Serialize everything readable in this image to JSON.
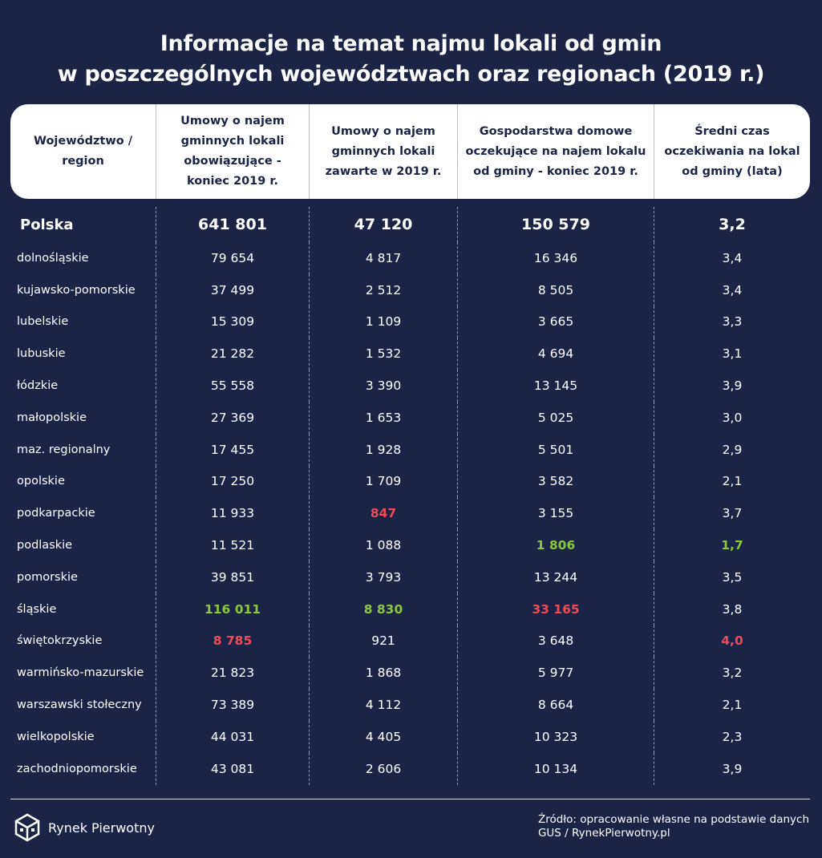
{
  "title": {
    "line1": "Informacje na temat najmu lokali od gmin",
    "line2": "w poszczególnych województwach oraz regionach (2019 r.)"
  },
  "header": {
    "col0": "Województwo / region",
    "col1": "Umowy o najem gminnych lokali obowiązujące - koniec 2019 r.",
    "col2": "Umowy o najem gminnych lokali zawarte w 2019 r.",
    "col3": "Gospodarstwa domowe oczekujące na najem lokalu od gminy - koniec 2019 r.",
    "col4": "Średni czas oczekiwania na lokal od gminy (lata)"
  },
  "colors": {
    "highlight_max": "#8cc63f",
    "highlight_min": "#ee4c55",
    "background": "#1b2447"
  },
  "rows": [
    {
      "region": "Polska",
      "active": "641 801",
      "signed": "47 120",
      "waiting": "150 579",
      "avg_wait": "3,2"
    },
    {
      "region": "dolnośląskie",
      "active": "79 654",
      "signed": "4 817",
      "waiting": "16 346",
      "avg_wait": "3,4"
    },
    {
      "region": "kujawsko-pomorskie",
      "active": "37 499",
      "signed": "2 512",
      "waiting": "8 505",
      "avg_wait": "3,4"
    },
    {
      "region": "lubelskie",
      "active": "15 309",
      "signed": "1 109",
      "waiting": "3 665",
      "avg_wait": "3,3"
    },
    {
      "region": "lubuskie",
      "active": "21 282",
      "signed": "1 532",
      "waiting": "4 694",
      "avg_wait": "3,1"
    },
    {
      "region": "łódzkie",
      "active": "55 558",
      "signed": "3 390",
      "waiting": "13 145",
      "avg_wait": "3,9"
    },
    {
      "region": "małopolskie",
      "active": "27 369",
      "signed": "1 653",
      "waiting": "5 025",
      "avg_wait": "3,0"
    },
    {
      "region": "maz. regionalny",
      "active": "17 455",
      "signed": "1 928",
      "waiting": "5 501",
      "avg_wait": "2,9"
    },
    {
      "region": "opolskie",
      "active": "17 250",
      "signed": "1 709",
      "waiting": "3 582",
      "avg_wait": "2,1"
    },
    {
      "region": "podkarpackie",
      "active": "11 933",
      "signed": "847",
      "waiting": "3 155",
      "avg_wait": "3,7"
    },
    {
      "region": "podlaskie",
      "active": "11 521",
      "signed": "1 088",
      "waiting": "1 806",
      "avg_wait": "1,7"
    },
    {
      "region": "pomorskie",
      "active": "39 851",
      "signed": "3 793",
      "waiting": "13 244",
      "avg_wait": "3,5"
    },
    {
      "region": "śląskie",
      "active": "116 011",
      "signed": "8 830",
      "waiting": "33 165",
      "avg_wait": "3,8"
    },
    {
      "region": "świętokrzyskie",
      "active": "8 785",
      "signed": "921",
      "waiting": "3 648",
      "avg_wait": "4,0"
    },
    {
      "region": "warmińsko-mazurskie",
      "active": "21 823",
      "signed": "1 868",
      "waiting": "5 977",
      "avg_wait": "3,2"
    },
    {
      "region": "warszawski stołeczny",
      "active": "73 389",
      "signed": "4 112",
      "waiting": "8 664",
      "avg_wait": "2,1"
    },
    {
      "region": "wielkopolskie",
      "active": "44 031",
      "signed": "4 405",
      "waiting": "10 323",
      "avg_wait": "2,3"
    },
    {
      "region": "zachodniopomorskie",
      "active": "43 081",
      "signed": "2 606",
      "waiting": "10 134",
      "avg_wait": "3,9"
    }
  ],
  "footer": {
    "brand": "Rynek Pierwotny",
    "source_line1": "Źródło: opracowanie własne na podstawie danych",
    "source_line2": "GUS / RynekPierwotny.pl"
  }
}
